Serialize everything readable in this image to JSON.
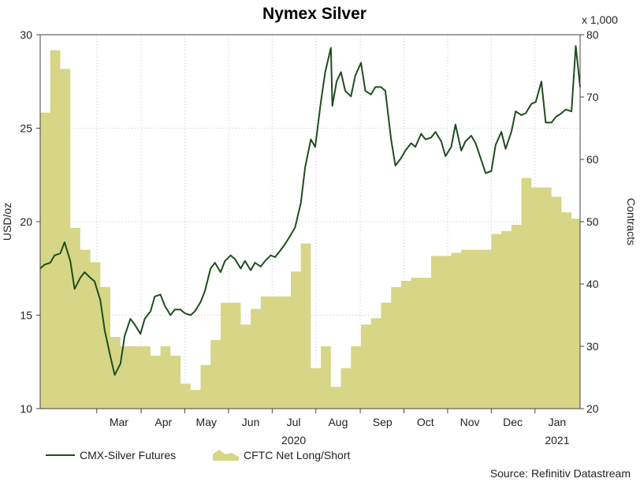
{
  "chart_data": {
    "type": "line",
    "title": "Nymex Silver",
    "left_axis": {
      "label": "USD/oz",
      "min": 10,
      "max": 30,
      "ticks": [
        10,
        15,
        20,
        25,
        30
      ]
    },
    "right_axis": {
      "label": "Contracts",
      "multiplier_label": "x 1,000",
      "min": 20,
      "max": 80,
      "ticks": [
        20,
        30,
        40,
        50,
        60,
        70,
        80
      ]
    },
    "x_axis": {
      "start": "2020-01-20",
      "end": "2021-01-31",
      "month_ticks": [
        {
          "label": "Mar",
          "date": "2020-03-15"
        },
        {
          "label": "Apr",
          "date": "2020-04-15"
        },
        {
          "label": "May",
          "date": "2020-05-15"
        },
        {
          "label": "Jun",
          "date": "2020-06-15"
        },
        {
          "label": "Jul",
          "date": "2020-07-15"
        },
        {
          "label": "Aug",
          "date": "2020-08-15"
        },
        {
          "label": "Sep",
          "date": "2020-09-15"
        },
        {
          "label": "Oct",
          "date": "2020-10-15"
        },
        {
          "label": "Nov",
          "date": "2020-11-15"
        },
        {
          "label": "Dec",
          "date": "2020-12-15"
        },
        {
          "label": "Jan",
          "date": "2021-01-15"
        }
      ],
      "year_labels": [
        {
          "label": "2020",
          "date": "2020-07-15"
        },
        {
          "label": "2021",
          "date": "2021-01-15"
        }
      ]
    },
    "grid": true,
    "legend_position": "bottom-left",
    "source": "Source: Refinitiv Datastream",
    "series": [
      {
        "name": "CMX-Silver Futures",
        "axis": "left",
        "style": "line",
        "color": "#1e4d1e",
        "points": [
          [
            "2020-01-20",
            17.5
          ],
          [
            "2020-01-23",
            17.7
          ],
          [
            "2020-01-27",
            17.8
          ],
          [
            "2020-01-30",
            18.2
          ],
          [
            "2020-02-03",
            18.3
          ],
          [
            "2020-02-06",
            18.9
          ],
          [
            "2020-02-10",
            17.9
          ],
          [
            "2020-02-13",
            16.4
          ],
          [
            "2020-02-17",
            17.0
          ],
          [
            "2020-02-20",
            17.3
          ],
          [
            "2020-02-24",
            17.0
          ],
          [
            "2020-02-27",
            16.8
          ],
          [
            "2020-03-02",
            15.8
          ],
          [
            "2020-03-05",
            14.2
          ],
          [
            "2020-03-09",
            12.8
          ],
          [
            "2020-03-12",
            11.8
          ],
          [
            "2020-03-16",
            12.4
          ],
          [
            "2020-03-19",
            13.9
          ],
          [
            "2020-03-23",
            14.8
          ],
          [
            "2020-03-26",
            14.5
          ],
          [
            "2020-03-30",
            14.0
          ],
          [
            "2020-04-02",
            14.8
          ],
          [
            "2020-04-06",
            15.2
          ],
          [
            "2020-04-09",
            16.0
          ],
          [
            "2020-04-13",
            16.1
          ],
          [
            "2020-04-16",
            15.5
          ],
          [
            "2020-04-20",
            15.0
          ],
          [
            "2020-04-23",
            15.3
          ],
          [
            "2020-04-27",
            15.3
          ],
          [
            "2020-04-30",
            15.1
          ],
          [
            "2020-05-04",
            15.0
          ],
          [
            "2020-05-07",
            15.2
          ],
          [
            "2020-05-11",
            15.7
          ],
          [
            "2020-05-14",
            16.3
          ],
          [
            "2020-05-18",
            17.5
          ],
          [
            "2020-05-21",
            17.8
          ],
          [
            "2020-05-25",
            17.3
          ],
          [
            "2020-05-28",
            17.9
          ],
          [
            "2020-06-01",
            18.2
          ],
          [
            "2020-06-04",
            18.0
          ],
          [
            "2020-06-08",
            17.5
          ],
          [
            "2020-06-11",
            17.9
          ],
          [
            "2020-06-15",
            17.4
          ],
          [
            "2020-06-18",
            17.8
          ],
          [
            "2020-06-22",
            17.6
          ],
          [
            "2020-06-25",
            17.9
          ],
          [
            "2020-06-29",
            18.2
          ],
          [
            "2020-07-02",
            18.1
          ],
          [
            "2020-07-06",
            18.5
          ],
          [
            "2020-07-09",
            18.8
          ],
          [
            "2020-07-13",
            19.3
          ],
          [
            "2020-07-16",
            19.7
          ],
          [
            "2020-07-20",
            21.0
          ],
          [
            "2020-07-23",
            22.9
          ],
          [
            "2020-07-27",
            24.4
          ],
          [
            "2020-07-30",
            24.0
          ],
          [
            "2020-08-03",
            26.4
          ],
          [
            "2020-08-06",
            28.0
          ],
          [
            "2020-08-10",
            29.3
          ],
          [
            "2020-08-11",
            26.2
          ],
          [
            "2020-08-14",
            27.5
          ],
          [
            "2020-08-17",
            28.0
          ],
          [
            "2020-08-20",
            27.0
          ],
          [
            "2020-08-24",
            26.7
          ],
          [
            "2020-08-27",
            27.8
          ],
          [
            "2020-08-31",
            28.5
          ],
          [
            "2020-09-03",
            27.0
          ],
          [
            "2020-09-07",
            26.8
          ],
          [
            "2020-09-10",
            27.2
          ],
          [
            "2020-09-14",
            27.2
          ],
          [
            "2020-09-17",
            27.0
          ],
          [
            "2020-09-21",
            24.4
          ],
          [
            "2020-09-24",
            23.0
          ],
          [
            "2020-09-28",
            23.4
          ],
          [
            "2020-10-01",
            23.8
          ],
          [
            "2020-10-05",
            24.2
          ],
          [
            "2020-10-08",
            24.0
          ],
          [
            "2020-10-12",
            24.7
          ],
          [
            "2020-10-15",
            24.4
          ],
          [
            "2020-10-19",
            24.5
          ],
          [
            "2020-10-22",
            24.8
          ],
          [
            "2020-10-26",
            24.3
          ],
          [
            "2020-10-29",
            23.5
          ],
          [
            "2020-11-02",
            24.0
          ],
          [
            "2020-11-05",
            25.2
          ],
          [
            "2020-11-09",
            23.8
          ],
          [
            "2020-11-12",
            24.3
          ],
          [
            "2020-11-16",
            24.6
          ],
          [
            "2020-11-19",
            24.2
          ],
          [
            "2020-11-23",
            23.3
          ],
          [
            "2020-11-26",
            22.6
          ],
          [
            "2020-11-30",
            22.7
          ],
          [
            "2020-12-03",
            24.1
          ],
          [
            "2020-12-07",
            24.8
          ],
          [
            "2020-12-10",
            23.9
          ],
          [
            "2020-12-14",
            24.8
          ],
          [
            "2020-12-17",
            25.9
          ],
          [
            "2020-12-21",
            25.7
          ],
          [
            "2020-12-24",
            25.8
          ],
          [
            "2020-12-28",
            26.3
          ],
          [
            "2020-12-31",
            26.4
          ],
          [
            "2021-01-04",
            27.5
          ],
          [
            "2021-01-07",
            25.3
          ],
          [
            "2021-01-11",
            25.3
          ],
          [
            "2021-01-14",
            25.6
          ],
          [
            "2021-01-18",
            25.8
          ],
          [
            "2021-01-21",
            26.0
          ],
          [
            "2021-01-25",
            25.9
          ],
          [
            "2021-01-28",
            29.4
          ],
          [
            "2021-01-31",
            27.2
          ]
        ]
      },
      {
        "name": "CFTC Net Long/Short",
        "axis": "right",
        "style": "area",
        "color": "#d6d686",
        "points": [
          [
            "2020-01-20",
            67.5
          ],
          [
            "2020-01-27",
            77.5
          ],
          [
            "2020-02-03",
            74.5
          ],
          [
            "2020-02-10",
            49.0
          ],
          [
            "2020-02-17",
            45.5
          ],
          [
            "2020-02-24",
            43.5
          ],
          [
            "2020-03-02",
            39.5
          ],
          [
            "2020-03-09",
            31.5
          ],
          [
            "2020-03-16",
            30.0
          ],
          [
            "2020-03-23",
            30.0
          ],
          [
            "2020-03-30",
            30.0
          ],
          [
            "2020-04-06",
            28.5
          ],
          [
            "2020-04-13",
            30.0
          ],
          [
            "2020-04-20",
            28.5
          ],
          [
            "2020-04-27",
            24.0
          ],
          [
            "2020-05-04",
            23.0
          ],
          [
            "2020-05-11",
            27.0
          ],
          [
            "2020-05-18",
            31.0
          ],
          [
            "2020-05-25",
            37.0
          ],
          [
            "2020-06-01",
            37.0
          ],
          [
            "2020-06-08",
            33.5
          ],
          [
            "2020-06-15",
            36.0
          ],
          [
            "2020-06-22",
            38.0
          ],
          [
            "2020-06-29",
            38.0
          ],
          [
            "2020-07-06",
            38.0
          ],
          [
            "2020-07-13",
            42.0
          ],
          [
            "2020-07-20",
            46.5
          ],
          [
            "2020-07-27",
            26.5
          ],
          [
            "2020-08-03",
            30.0
          ],
          [
            "2020-08-10",
            23.5
          ],
          [
            "2020-08-17",
            26.5
          ],
          [
            "2020-08-24",
            30.0
          ],
          [
            "2020-08-31",
            33.5
          ],
          [
            "2020-09-07",
            34.5
          ],
          [
            "2020-09-14",
            37.0
          ],
          [
            "2020-09-21",
            39.5
          ],
          [
            "2020-09-28",
            40.5
          ],
          [
            "2020-10-05",
            41.0
          ],
          [
            "2020-10-12",
            41.0
          ],
          [
            "2020-10-19",
            44.5
          ],
          [
            "2020-10-26",
            44.5
          ],
          [
            "2020-11-02",
            45.0
          ],
          [
            "2020-11-09",
            45.5
          ],
          [
            "2020-11-16",
            45.5
          ],
          [
            "2020-11-23",
            45.5
          ],
          [
            "2020-11-30",
            48.0
          ],
          [
            "2020-12-07",
            48.5
          ],
          [
            "2020-12-14",
            49.5
          ],
          [
            "2020-12-21",
            57.0
          ],
          [
            "2020-12-28",
            55.5
          ],
          [
            "2021-01-04",
            55.5
          ],
          [
            "2021-01-11",
            54.0
          ],
          [
            "2021-01-18",
            51.5
          ],
          [
            "2021-01-25",
            50.5
          ],
          [
            "2021-01-31",
            49.0
          ]
        ]
      }
    ]
  }
}
